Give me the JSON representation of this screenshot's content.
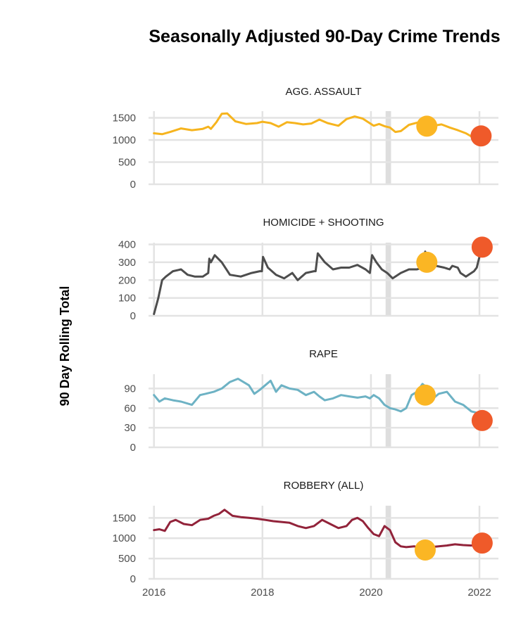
{
  "chart_data": {
    "type": "line",
    "title": "Seasonally Adjusted 90-Day Crime Trends",
    "ylabel": "90 Day Rolling Total",
    "xlabel": "",
    "x_ticks": [
      "2016",
      "2018",
      "2020",
      "2022"
    ],
    "xlim": [
      2015.9,
      2022.35
    ],
    "grid": true,
    "shaded_band": [
      2020.27,
      2020.37
    ],
    "colors": {
      "grid": "#e3e3e3",
      "band": "#dedede",
      "marker_2021": "#fbb624",
      "marker_2022": "#ef5a2a"
    },
    "panels": [
      {
        "name": "AGG. ASSAULT",
        "color": "#f6b41e",
        "ylim": [
          0,
          1650
        ],
        "y_ticks": [
          0,
          500,
          1000,
          1500
        ],
        "x": [
          2016.0,
          2016.15,
          2016.3,
          2016.5,
          2016.7,
          2016.9,
          2017.0,
          2017.05,
          2017.15,
          2017.25,
          2017.35,
          2017.5,
          2017.7,
          2017.9,
          2018.0,
          2018.15,
          2018.3,
          2018.45,
          2018.6,
          2018.75,
          2018.9,
          2019.05,
          2019.2,
          2019.3,
          2019.4,
          2019.55,
          2019.7,
          2019.85,
          2019.95,
          2020.05,
          2020.15,
          2020.25,
          2020.35,
          2020.45,
          2020.55,
          2020.7,
          2020.85,
          2020.95,
          2021.05,
          2021.15,
          2021.3,
          2021.45,
          2021.6,
          2021.75,
          2021.85,
          2021.95,
          2022.0
        ],
        "values": [
          1150,
          1130,
          1180,
          1260,
          1220,
          1250,
          1300,
          1250,
          1400,
          1590,
          1600,
          1420,
          1360,
          1380,
          1410,
          1380,
          1300,
          1400,
          1380,
          1350,
          1370,
          1460,
          1380,
          1350,
          1320,
          1470,
          1530,
          1480,
          1400,
          1320,
          1360,
          1310,
          1280,
          1180,
          1200,
          1340,
          1390,
          1330,
          1360,
          1320,
          1350,
          1280,
          1220,
          1150,
          1080,
          1060,
          1080
        ],
        "markers": [
          {
            "x": 2021.03,
            "y": 1310
          },
          {
            "x": 2022.03,
            "y": 1090
          }
        ]
      },
      {
        "name": "HOMICIDE + SHOOTING",
        "color": "#4d4d4d",
        "ylim": [
          0,
          410
        ],
        "y_ticks": [
          0,
          100,
          200,
          300,
          400
        ],
        "x": [
          2016.0,
          2016.08,
          2016.15,
          2016.22,
          2016.35,
          2016.5,
          2016.62,
          2016.75,
          2016.9,
          2017.0,
          2017.02,
          2017.05,
          2017.12,
          2017.25,
          2017.4,
          2017.6,
          2017.8,
          2017.95,
          2017.99,
          2018.01,
          2018.1,
          2018.25,
          2018.4,
          2018.55,
          2018.65,
          2018.8,
          2018.95,
          2018.98,
          2019.02,
          2019.15,
          2019.3,
          2019.45,
          2019.6,
          2019.75,
          2019.9,
          2019.98,
          2020.02,
          2020.1,
          2020.2,
          2020.3,
          2020.4,
          2020.55,
          2020.7,
          2020.85,
          2020.95,
          2021.0,
          2021.05,
          2021.2,
          2021.35,
          2021.45,
          2021.5,
          2021.6,
          2021.65,
          2021.75,
          2021.9,
          2021.95,
          2022.0
        ],
        "values": [
          10,
          100,
          200,
          220,
          250,
          260,
          230,
          220,
          220,
          240,
          320,
          300,
          340,
          300,
          230,
          220,
          240,
          250,
          250,
          330,
          270,
          230,
          210,
          240,
          200,
          240,
          250,
          250,
          350,
          300,
          260,
          270,
          270,
          285,
          260,
          240,
          340,
          300,
          260,
          240,
          210,
          240,
          260,
          260,
          270,
          360,
          250,
          280,
          270,
          260,
          280,
          270,
          240,
          220,
          250,
          270,
          330
        ],
        "markers": [
          {
            "x": 2021.03,
            "y": 300
          },
          {
            "x": 2022.05,
            "y": 385
          }
        ]
      },
      {
        "name": "RAPE",
        "color": "#6db2c4",
        "ylim": [
          0,
          112
        ],
        "y_ticks": [
          0,
          30,
          60,
          90
        ],
        "x": [
          2016.0,
          2016.1,
          2016.2,
          2016.35,
          2016.5,
          2016.7,
          2016.85,
          2016.95,
          2017.1,
          2017.25,
          2017.4,
          2017.55,
          2017.75,
          2017.85,
          2017.95,
          2018.05,
          2018.15,
          2018.25,
          2018.35,
          2018.5,
          2018.65,
          2018.8,
          2018.95,
          2019.05,
          2019.15,
          2019.3,
          2019.45,
          2019.6,
          2019.75,
          2019.9,
          2019.98,
          2020.05,
          2020.15,
          2020.25,
          2020.35,
          2020.45,
          2020.55,
          2020.65,
          2020.75,
          2020.85,
          2020.95,
          2021.05,
          2021.15,
          2021.25,
          2021.4,
          2021.55,
          2021.7,
          2021.85,
          2022.0
        ],
        "values": [
          80,
          70,
          75,
          72,
          70,
          65,
          80,
          82,
          85,
          90,
          100,
          105,
          95,
          82,
          88,
          95,
          102,
          85,
          95,
          90,
          88,
          80,
          85,
          78,
          72,
          75,
          80,
          78,
          76,
          78,
          75,
          80,
          75,
          65,
          60,
          58,
          55,
          60,
          80,
          85,
          97,
          90,
          75,
          82,
          85,
          70,
          65,
          55,
          52
        ],
        "markers": [
          {
            "x": 2021.0,
            "y": 80
          },
          {
            "x": 2022.05,
            "y": 41
          }
        ]
      },
      {
        "name": "ROBBERY (ALL)",
        "color": "#92233a",
        "ylim": [
          0,
          1800
        ],
        "y_ticks": [
          0,
          500,
          1000,
          1500
        ],
        "x": [
          2016.0,
          2016.1,
          2016.2,
          2016.3,
          2016.4,
          2016.55,
          2016.7,
          2016.85,
          2017.0,
          2017.1,
          2017.2,
          2017.3,
          2017.45,
          2017.6,
          2017.75,
          2017.9,
          2018.05,
          2018.2,
          2018.35,
          2018.5,
          2018.65,
          2018.8,
          2018.95,
          2019.1,
          2019.25,
          2019.4,
          2019.55,
          2019.65,
          2019.75,
          2019.85,
          2019.95,
          2020.05,
          2020.15,
          2020.25,
          2020.35,
          2020.45,
          2020.55,
          2020.65,
          2020.8,
          2020.95,
          2021.1,
          2021.25,
          2021.4,
          2021.55,
          2021.7,
          2021.85,
          2022.0
        ],
        "values": [
          1200,
          1220,
          1180,
          1400,
          1450,
          1350,
          1320,
          1450,
          1480,
          1550,
          1600,
          1700,
          1550,
          1520,
          1500,
          1480,
          1450,
          1420,
          1400,
          1380,
          1300,
          1250,
          1300,
          1450,
          1350,
          1250,
          1300,
          1450,
          1500,
          1420,
          1250,
          1100,
          1050,
          1300,
          1200,
          900,
          800,
          780,
          800,
          750,
          780,
          800,
          820,
          850,
          830,
          820,
          850
        ],
        "markers": [
          {
            "x": 2021.0,
            "y": 710
          },
          {
            "x": 2022.05,
            "y": 880
          }
        ]
      }
    ]
  }
}
